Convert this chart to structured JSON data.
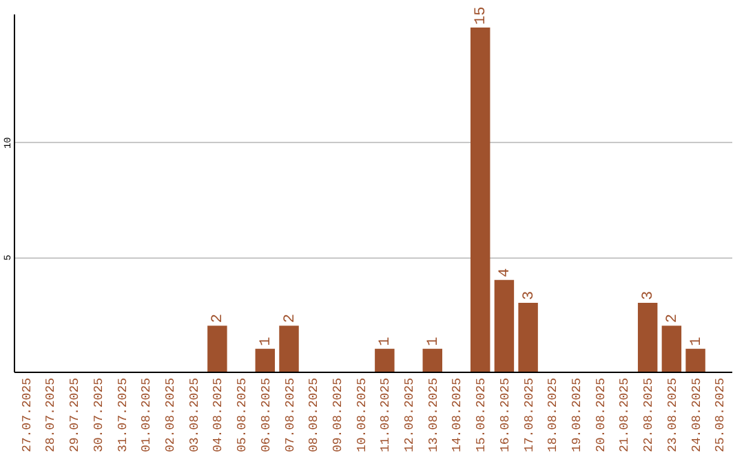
{
  "chart_data": {
    "type": "bar",
    "categories": [
      "27.07.2025",
      "28.07.2025",
      "29.07.2025",
      "30.07.2025",
      "31.07.2025",
      "01.08.2025",
      "02.08.2025",
      "03.08.2025",
      "04.08.2025",
      "05.08.2025",
      "06.08.2025",
      "07.08.2025",
      "08.08.2025",
      "09.08.2025",
      "10.08.2025",
      "11.08.2025",
      "12.08.2025",
      "13.08.2025",
      "14.08.2025",
      "15.08.2025",
      "16.08.2025",
      "17.08.2025",
      "18.08.2025",
      "19.08.2025",
      "20.08.2025",
      "21.08.2025",
      "22.08.2025",
      "23.08.2025",
      "24.08.2025",
      "25.08.2025"
    ],
    "values": [
      0,
      0,
      0,
      0,
      0,
      0,
      0,
      0,
      2,
      0,
      1,
      2,
      0,
      0,
      0,
      1,
      0,
      1,
      0,
      15,
      4,
      3,
      0,
      0,
      0,
      0,
      3,
      2,
      1,
      0
    ],
    "value_labels": [
      null,
      null,
      null,
      null,
      null,
      null,
      null,
      null,
      "2",
      null,
      "1",
      "2",
      null,
      null,
      null,
      "1",
      null,
      "1",
      null,
      "15",
      "4",
      "3",
      null,
      null,
      null,
      null,
      "3",
      "2",
      "1",
      null
    ],
    "color": "#a0522d",
    "ylim": [
      0,
      15.6
    ],
    "yticks": [
      5,
      10
    ],
    "grid": "y"
  }
}
